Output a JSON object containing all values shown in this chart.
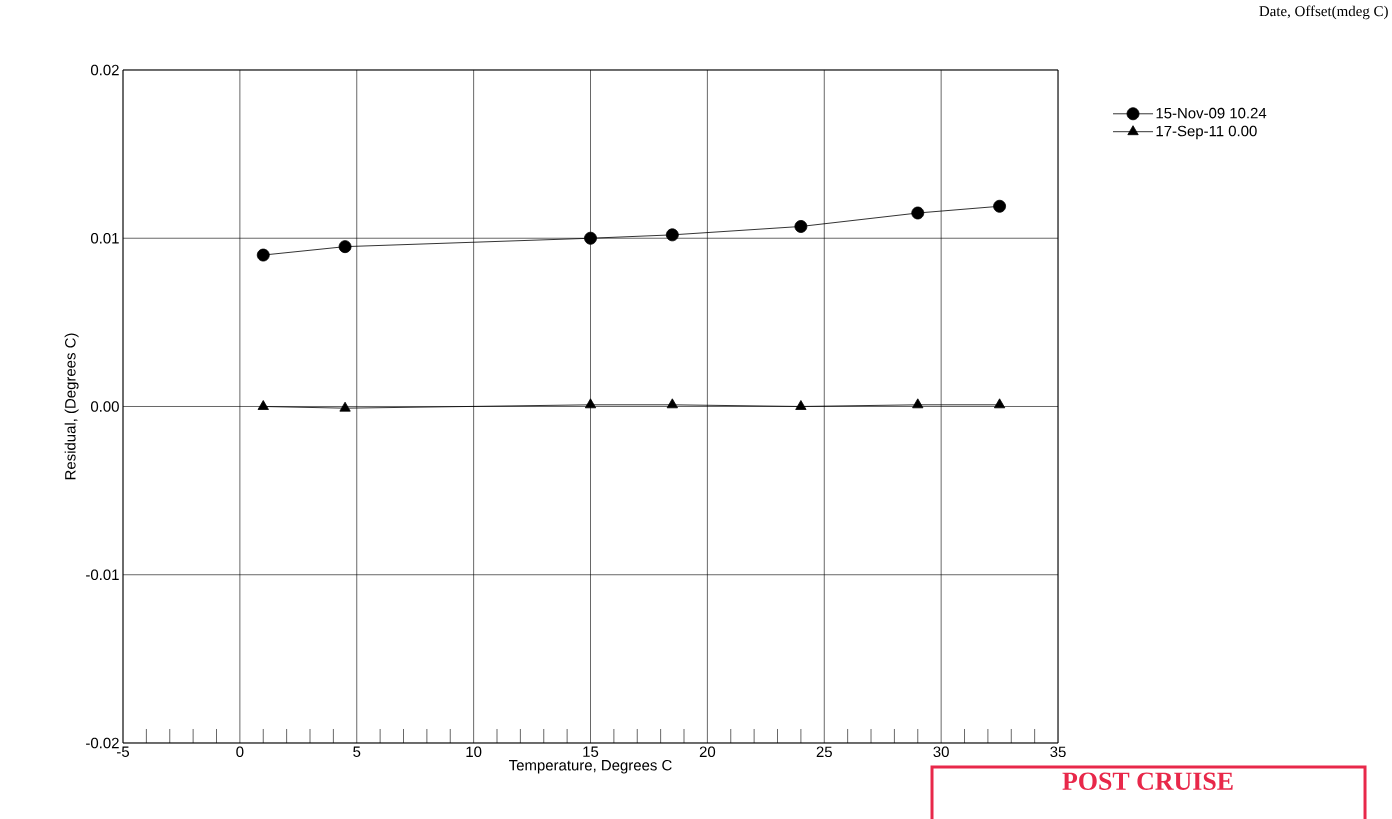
{
  "chart_data": {
    "type": "line",
    "xlabel": "Temperature, Degrees C",
    "ylabel": "Residual, (Degrees C)",
    "legend_title": "Date, Offset(mdeg C)",
    "x": [
      1,
      4.5,
      15,
      18.5,
      24,
      29,
      32.5
    ],
    "series": [
      {
        "name": "15-Nov-09  10.24",
        "color": "#000000",
        "marker": "circle",
        "values": [
          0.009,
          0.0095,
          0.01,
          0.0102,
          0.0107,
          0.0115,
          0.0119
        ]
      },
      {
        "name": "17-Sep-11   0.00",
        "color": "#000000",
        "marker": "triangle",
        "values": [
          0.0,
          -0.0001,
          0.0001,
          0.0001,
          0.0,
          0.0001,
          0.0001
        ]
      }
    ],
    "xlim": [
      -5,
      35
    ],
    "xticks": [
      -5,
      0,
      5,
      10,
      15,
      20,
      25,
      30,
      35
    ],
    "ylim": [
      -0.02,
      0.02
    ],
    "yticks": [
      -0.02,
      -0.01,
      {
        "value": 0,
        "label": "0.00"
      },
      0.01,
      0.02
    ],
    "grid": true,
    "legend": "top right",
    "line_style": "solid",
    "annotations": [
      "POST CRUISE"
    ]
  }
}
